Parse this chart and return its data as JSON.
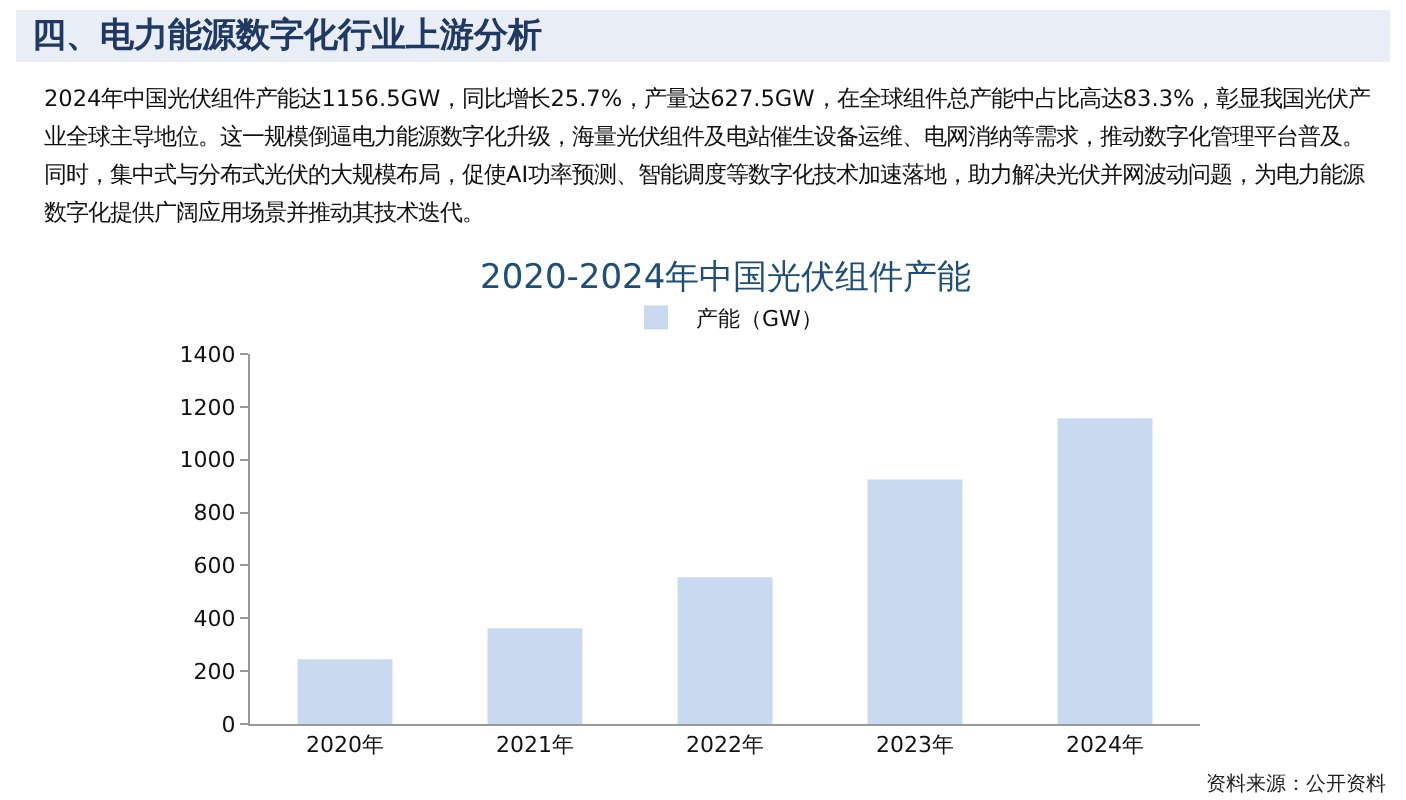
{
  "chart_data": {
    "type": "bar",
    "title": "四、电力能源数字化行业上游分析",
    "subtitle": "2024年中国光伏组件产能达1156.5GW，同比增长25.7%，产量达627.5GW，在全球组件总产能中占比高达83.3%，彰显我国光伏产业全球主导地位。这一规模倒逼电力能源数字化升级，海量光伏组件及电站催生设备运维、电网消纳等需求，推动数字化管理平台普及。同时，集中式与分布式光伏的大规模布局，促使AI功率预测、智能调度等数字化技术加速落地，助力解决光伏并网波动问题，为电力能源数字化提供广阔应用场景并推动其技术迭代。",
    "annotations": [
      "2020-2024年中国光伏组件产能",
      "资料来源：公开资料"
    ],
    "categories": [
      "2020年",
      "2021年",
      "2022年",
      "2023年",
      "2024年"
    ],
    "series": [
      {
        "name": "产能（GW）",
        "color": "#c9daf0",
        "values": [
          245,
          362,
          555,
          925,
          1157
        ]
      }
    ],
    "ylim": [
      0,
      1400
    ],
    "yticks": [
      0,
      200,
      400,
      600,
      800,
      1000,
      1200,
      1400
    ],
    "grid": false,
    "legend": "top"
  }
}
